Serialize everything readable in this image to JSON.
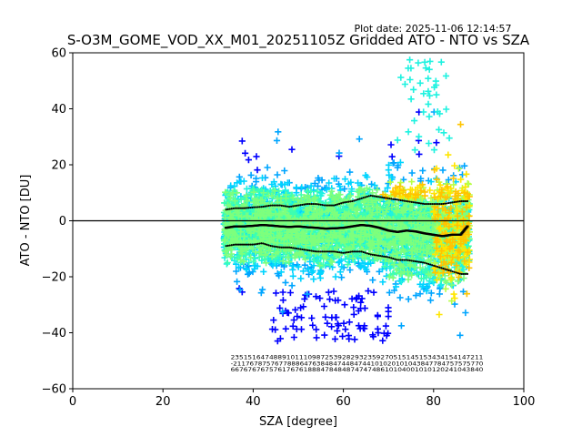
{
  "chart_data": {
    "type": "scatter",
    "title": "S-O3M_GOME_VOD_XX_M01_20251105Z Gridded ATO - NTO vs SZA",
    "plot_date": "Plot date: 2025-11-06 12:14:57",
    "xlabel": "SZA [degree]",
    "ylabel": "ATO - NTO [DU]",
    "xlim": [
      0,
      100
    ],
    "ylim": [
      -60,
      60
    ],
    "xticks": [
      0,
      20,
      40,
      60,
      80,
      100
    ],
    "yticks": [
      -60,
      -40,
      -20,
      0,
      20,
      40,
      60
    ],
    "xtick_labels": [
      "0",
      "20",
      "40",
      "60",
      "80",
      "100"
    ],
    "ytick_labels": [
      "−60",
      "−40",
      "−20",
      "0",
      "20",
      "40",
      "60"
    ],
    "grid": false,
    "zero_line": 0,
    "scatter_sza_range": [
      33.5,
      88
    ],
    "mean_curve": {
      "x": [
        34,
        36,
        38,
        40,
        42,
        44,
        46,
        48,
        50,
        52,
        54,
        56,
        58,
        60,
        62,
        64,
        66,
        68,
        70,
        72,
        74,
        76,
        78,
        80,
        82,
        84,
        86,
        87.5
      ],
      "y": [
        -2.5,
        -2.0,
        -2.0,
        -1.8,
        -1.5,
        -1.7,
        -2.0,
        -2.2,
        -2.0,
        -2.3,
        -2.5,
        -2.8,
        -2.7,
        -2.5,
        -2.0,
        -1.5,
        -1.8,
        -2.5,
        -3.5,
        -4.0,
        -3.5,
        -3.8,
        -4.5,
        -5.0,
        -5.5,
        -5.0,
        -5.0,
        -2.0
      ]
    },
    "upper_curve": {
      "x": [
        34,
        36,
        38,
        40,
        42,
        44,
        46,
        48,
        50,
        52,
        54,
        56,
        58,
        60,
        62,
        64,
        66,
        68,
        70,
        72,
        74,
        76,
        78,
        80,
        82,
        84,
        86,
        87.5
      ],
      "y": [
        4.0,
        4.5,
        4.5,
        4.8,
        5.0,
        5.5,
        5.5,
        5.0,
        5.5,
        6.0,
        6.0,
        5.5,
        5.5,
        6.5,
        7.0,
        8.0,
        9.0,
        8.5,
        8.0,
        7.5,
        7.0,
        6.5,
        6.0,
        6.0,
        6.0,
        6.5,
        7.0,
        7.0
      ]
    },
    "lower_curve": {
      "x": [
        34,
        36,
        38,
        40,
        42,
        44,
        46,
        48,
        50,
        52,
        54,
        56,
        58,
        60,
        62,
        64,
        66,
        68,
        70,
        72,
        74,
        76,
        78,
        80,
        82,
        84,
        86,
        87.5
      ],
      "y": [
        -9.0,
        -8.5,
        -8.5,
        -8.5,
        -8.0,
        -9.0,
        -9.5,
        -9.5,
        -10.0,
        -10.5,
        -11.0,
        -11.0,
        -11.0,
        -11.5,
        -11.0,
        -11.0,
        -12.0,
        -12.5,
        -13.0,
        -14.0,
        -14.0,
        -14.5,
        -15.0,
        -16.0,
        -17.0,
        -18.0,
        -19.0,
        -19.0
      ]
    },
    "colors": {
      "mean": "#000000",
      "zero_line": "#000000",
      "palette": [
        "#0000ff",
        "#00a5ff",
        "#00d4ff",
        "#1ff2e0",
        "#3dffb0",
        "#7dff7d",
        "#b8ff47",
        "#ffe600",
        "#ffc400"
      ]
    },
    "count_annotations": {
      "rows": [
        "23515164748891011109872539282932359270515145153434154147211",
        "-211767875767788864763848474484744101020101043847784757575770",
        "66767676757617676188847848487474748610104001010120241043840"
      ],
      "y_positions": [
        -49.5,
        -51.7,
        -53.9
      ],
      "x_range": [
        35,
        91
      ]
    }
  }
}
